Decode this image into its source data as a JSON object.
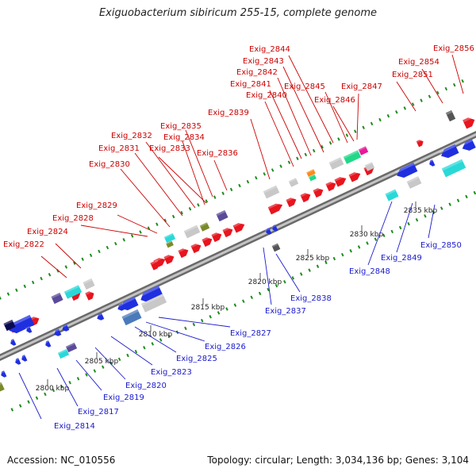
{
  "title": "Exiguobacterium sibiricum 255-15, complete genome",
  "footer": {
    "accession": "Accession: NC_010556",
    "stats": "Topology: circular; Length: 3,034,136 bp; Genes: 3,104"
  },
  "colors": {
    "backbone": "#a0a0a0",
    "forward_gene": "#e8141e",
    "reverse_gene": "#1f2fe0",
    "forward_label": "#cc0000",
    "reverse_label": "#1a1acc",
    "tick": "#1e8c1e",
    "rrna_gray": "#c8c8c8",
    "teal": "#2ad8d8",
    "green": "#22d888",
    "olive": "#7a8a2a",
    "purple": "#5a4a9a",
    "orange": "#ff8a1a",
    "magenta": "#e81a9a",
    "navy": "#0a0a50",
    "steel": "#4a7aba",
    "dark_gray": "#555555"
  },
  "scale_labels": [
    "2800 kbp",
    "2805 kbp",
    "2810 kbp",
    "2815 kbp",
    "2820 kbp",
    "2825 kbp",
    "2830 kbp",
    "2835 kbp"
  ],
  "forward_labels": [
    "Exig_2822",
    "Exig_2824",
    "Exig_2828",
    "Exig_2829",
    "Exig_2830",
    "Exig_2831",
    "Exig_2832",
    "Exig_2833",
    "Exig_2834",
    "Exig_2835",
    "Exig_2836",
    "Exig_2839",
    "Exig_2840",
    "Exig_2841",
    "Exig_2842",
    "Exig_2843",
    "Exig_2844",
    "Exig_2845",
    "Exig_2846",
    "Exig_2847",
    "Exig_2851",
    "Exig_2854",
    "Exig_2856"
  ],
  "reverse_labels": [
    "Exig_2814",
    "Exig_2817",
    "Exig_2819",
    "Exig_2820",
    "Exig_2823",
    "Exig_2825",
    "Exig_2826",
    "Exig_2827",
    "Exig_2837",
    "Exig_2838",
    "Exig_2848",
    "Exig_2849",
    "Exig_2850"
  ]
}
